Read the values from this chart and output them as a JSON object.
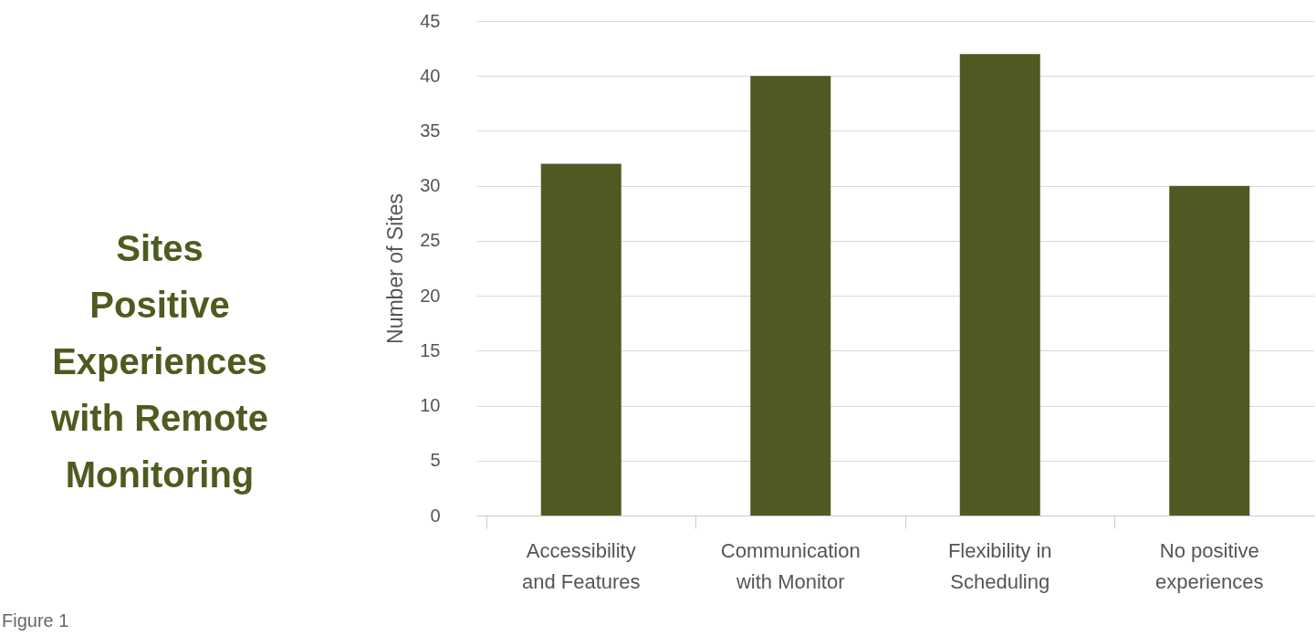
{
  "chart_data": {
    "type": "bar",
    "title": "Sites Positive Experiences with Remote Monitoring",
    "ylabel": "Number of Sites",
    "categories": [
      "Accessibility and Features",
      "Communication with Monitor",
      "Flexibility in Scheduling",
      "No positive experiences"
    ],
    "values": [
      32,
      40,
      42,
      30
    ],
    "color": "#4f5a23",
    "ylim": [
      0,
      45
    ],
    "yticks": [
      0,
      5,
      10,
      15,
      20,
      25,
      30,
      35,
      40,
      45
    ],
    "grid": "y",
    "annotations": [
      "Figure 1"
    ]
  }
}
